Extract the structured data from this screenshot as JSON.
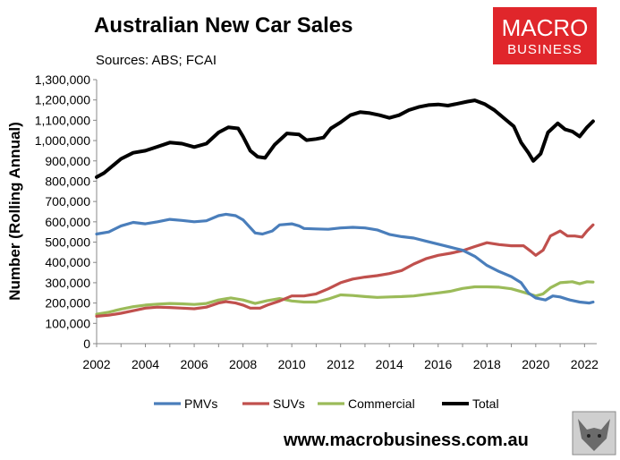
{
  "title": "Australian New Car Sales",
  "sources": "Sources: ABS; FCAI",
  "logo": {
    "line1": "MACRO",
    "line2": "BUSINESS",
    "bg_color": "#e0262b"
  },
  "website": "www.macrobusiness.com.au",
  "chart_data": {
    "type": "line",
    "title": "Australian New Car Sales",
    "ylabel": "Number (Rolling Annual)",
    "xlabel": "",
    "xlim": [
      2002,
      2022.5
    ],
    "ylim": [
      0,
      1300000
    ],
    "grid": false,
    "legend_position": "bottom",
    "x_ticks": [
      "2002",
      "2004",
      "2006",
      "2008",
      "2010",
      "2012",
      "2014",
      "2016",
      "2018",
      "2020",
      "2022"
    ],
    "y_ticks": [
      "0",
      "100,000",
      "200,000",
      "300,000",
      "400,000",
      "500,000",
      "600,000",
      "700,000",
      "800,000",
      "900,000",
      "1,000,000",
      "1,100,000",
      "1,200,000",
      "1,300,000"
    ],
    "series": [
      {
        "name": "PMVs",
        "color": "#4a7ebb",
        "points": [
          [
            2002,
            540000
          ],
          [
            2002.5,
            550000
          ],
          [
            2003,
            580000
          ],
          [
            2003.5,
            597000
          ],
          [
            2004,
            590000
          ],
          [
            2004.5,
            600000
          ],
          [
            2005,
            612000
          ],
          [
            2005.5,
            607000
          ],
          [
            2006,
            600000
          ],
          [
            2006.5,
            605000
          ],
          [
            2007,
            630000
          ],
          [
            2007.3,
            637000
          ],
          [
            2007.7,
            630000
          ],
          [
            2008,
            610000
          ],
          [
            2008.5,
            545000
          ],
          [
            2008.8,
            540000
          ],
          [
            2009.2,
            555000
          ],
          [
            2009.5,
            585000
          ],
          [
            2010,
            590000
          ],
          [
            2010.3,
            580000
          ],
          [
            2010.5,
            567000
          ],
          [
            2011,
            565000
          ],
          [
            2011.5,
            563000
          ],
          [
            2012,
            570000
          ],
          [
            2012.5,
            573000
          ],
          [
            2013,
            570000
          ],
          [
            2013.5,
            560000
          ],
          [
            2014,
            538000
          ],
          [
            2014.5,
            527000
          ],
          [
            2015,
            520000
          ],
          [
            2015.5,
            505000
          ],
          [
            2016,
            490000
          ],
          [
            2016.5,
            475000
          ],
          [
            2017,
            460000
          ],
          [
            2017.5,
            430000
          ],
          [
            2018,
            385000
          ],
          [
            2018.5,
            355000
          ],
          [
            2019,
            330000
          ],
          [
            2019.4,
            300000
          ],
          [
            2019.7,
            250000
          ],
          [
            2020,
            225000
          ],
          [
            2020.4,
            215000
          ],
          [
            2020.7,
            235000
          ],
          [
            2021,
            230000
          ],
          [
            2021.4,
            215000
          ],
          [
            2021.8,
            205000
          ],
          [
            2022.2,
            200000
          ],
          [
            2022.35,
            205000
          ]
        ]
      },
      {
        "name": "SUVs",
        "color": "#c0504d",
        "points": [
          [
            2002,
            135000
          ],
          [
            2002.5,
            140000
          ],
          [
            2003,
            150000
          ],
          [
            2003.5,
            162000
          ],
          [
            2004,
            175000
          ],
          [
            2004.5,
            180000
          ],
          [
            2005,
            178000
          ],
          [
            2005.5,
            175000
          ],
          [
            2006,
            172000
          ],
          [
            2006.5,
            180000
          ],
          [
            2007,
            200000
          ],
          [
            2007.3,
            207000
          ],
          [
            2007.7,
            200000
          ],
          [
            2008,
            190000
          ],
          [
            2008.3,
            175000
          ],
          [
            2008.7,
            175000
          ],
          [
            2009,
            190000
          ],
          [
            2009.5,
            210000
          ],
          [
            2010,
            235000
          ],
          [
            2010.5,
            235000
          ],
          [
            2011,
            245000
          ],
          [
            2011.5,
            270000
          ],
          [
            2012,
            300000
          ],
          [
            2012.5,
            318000
          ],
          [
            2013,
            328000
          ],
          [
            2013.5,
            335000
          ],
          [
            2014,
            345000
          ],
          [
            2014.5,
            360000
          ],
          [
            2015,
            392000
          ],
          [
            2015.5,
            418000
          ],
          [
            2016,
            435000
          ],
          [
            2016.5,
            445000
          ],
          [
            2017,
            458000
          ],
          [
            2017.5,
            478000
          ],
          [
            2018,
            497000
          ],
          [
            2018.5,
            488000
          ],
          [
            2019,
            482000
          ],
          [
            2019.5,
            482000
          ],
          [
            2019.8,
            455000
          ],
          [
            2020,
            435000
          ],
          [
            2020.3,
            460000
          ],
          [
            2020.6,
            530000
          ],
          [
            2021,
            555000
          ],
          [
            2021.3,
            530000
          ],
          [
            2021.6,
            530000
          ],
          [
            2021.9,
            525000
          ],
          [
            2022.1,
            555000
          ],
          [
            2022.35,
            585000
          ]
        ]
      },
      {
        "name": "Commercial",
        "color": "#9bbb59",
        "points": [
          [
            2002,
            145000
          ],
          [
            2002.5,
            155000
          ],
          [
            2003,
            170000
          ],
          [
            2003.5,
            182000
          ],
          [
            2004,
            190000
          ],
          [
            2004.5,
            195000
          ],
          [
            2005,
            198000
          ],
          [
            2005.5,
            196000
          ],
          [
            2006,
            193000
          ],
          [
            2006.5,
            198000
          ],
          [
            2007,
            215000
          ],
          [
            2007.5,
            225000
          ],
          [
            2008,
            215000
          ],
          [
            2008.5,
            198000
          ],
          [
            2009,
            212000
          ],
          [
            2009.5,
            222000
          ],
          [
            2010,
            210000
          ],
          [
            2010.5,
            205000
          ],
          [
            2011,
            205000
          ],
          [
            2011.5,
            220000
          ],
          [
            2012,
            240000
          ],
          [
            2012.5,
            237000
          ],
          [
            2013,
            232000
          ],
          [
            2013.5,
            228000
          ],
          [
            2014,
            230000
          ],
          [
            2014.5,
            232000
          ],
          [
            2015,
            235000
          ],
          [
            2015.5,
            243000
          ],
          [
            2016,
            250000
          ],
          [
            2016.5,
            258000
          ],
          [
            2017,
            272000
          ],
          [
            2017.5,
            280000
          ],
          [
            2018,
            280000
          ],
          [
            2018.5,
            278000
          ],
          [
            2019,
            270000
          ],
          [
            2019.5,
            253000
          ],
          [
            2020,
            235000
          ],
          [
            2020.3,
            245000
          ],
          [
            2020.6,
            275000
          ],
          [
            2021,
            300000
          ],
          [
            2021.5,
            305000
          ],
          [
            2021.8,
            295000
          ],
          [
            2022.1,
            305000
          ],
          [
            2022.35,
            303000
          ]
        ]
      },
      {
        "name": "Total",
        "color": "#000000",
        "points": [
          [
            2002,
            820000
          ],
          [
            2002.3,
            840000
          ],
          [
            2002.7,
            880000
          ],
          [
            2003,
            910000
          ],
          [
            2003.5,
            940000
          ],
          [
            2004,
            950000
          ],
          [
            2004.5,
            970000
          ],
          [
            2005,
            990000
          ],
          [
            2005.5,
            985000
          ],
          [
            2006,
            968000
          ],
          [
            2006.5,
            985000
          ],
          [
            2007,
            1040000
          ],
          [
            2007.4,
            1065000
          ],
          [
            2007.8,
            1060000
          ],
          [
            2008,
            1020000
          ],
          [
            2008.3,
            950000
          ],
          [
            2008.6,
            920000
          ],
          [
            2008.9,
            915000
          ],
          [
            2009.3,
            980000
          ],
          [
            2009.8,
            1035000
          ],
          [
            2010.3,
            1030000
          ],
          [
            2010.6,
            1002000
          ],
          [
            2011,
            1008000
          ],
          [
            2011.3,
            1015000
          ],
          [
            2011.6,
            1060000
          ],
          [
            2012,
            1090000
          ],
          [
            2012.4,
            1125000
          ],
          [
            2012.8,
            1140000
          ],
          [
            2013.2,
            1135000
          ],
          [
            2013.6,
            1125000
          ],
          [
            2014,
            1112000
          ],
          [
            2014.4,
            1125000
          ],
          [
            2014.8,
            1150000
          ],
          [
            2015.2,
            1165000
          ],
          [
            2015.6,
            1175000
          ],
          [
            2016,
            1178000
          ],
          [
            2016.4,
            1172000
          ],
          [
            2016.8,
            1182000
          ],
          [
            2017.2,
            1192000
          ],
          [
            2017.5,
            1198000
          ],
          [
            2017.9,
            1180000
          ],
          [
            2018.3,
            1150000
          ],
          [
            2018.7,
            1110000
          ],
          [
            2019.1,
            1070000
          ],
          [
            2019.4,
            990000
          ],
          [
            2019.7,
            940000
          ],
          [
            2019.9,
            900000
          ],
          [
            2020.2,
            935000
          ],
          [
            2020.5,
            1040000
          ],
          [
            2020.9,
            1085000
          ],
          [
            2021.2,
            1055000
          ],
          [
            2021.5,
            1045000
          ],
          [
            2021.8,
            1020000
          ],
          [
            2022.1,
            1065000
          ],
          [
            2022.35,
            1095000
          ]
        ]
      }
    ]
  }
}
